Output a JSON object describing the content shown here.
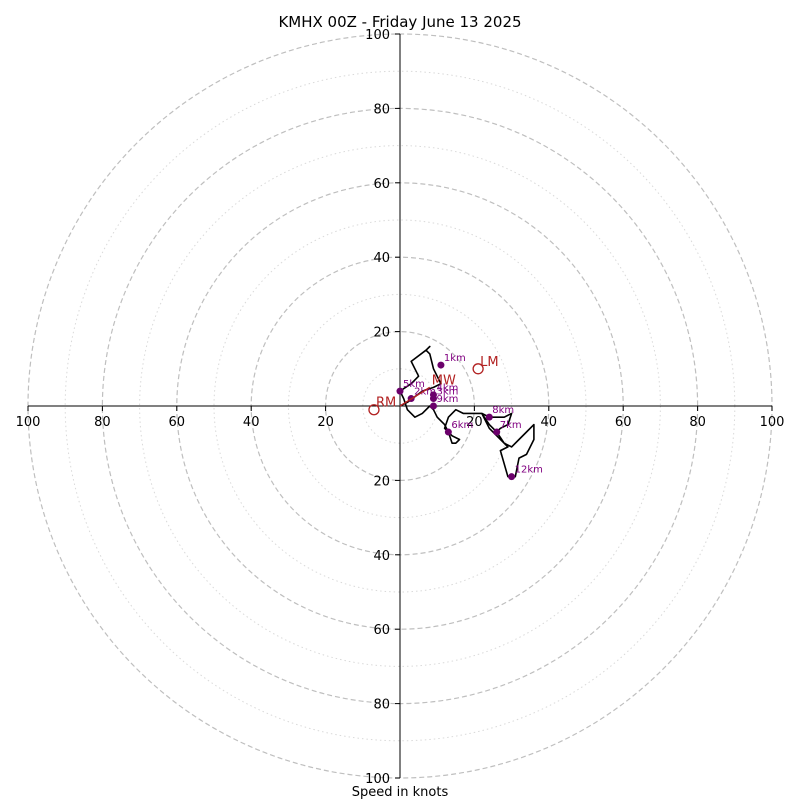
{
  "chart_data": {
    "type": "hodograph",
    "title": "KMHX 00Z - Friday June 13 2025",
    "xlabel": "Speed in knots",
    "range": [
      -100,
      100
    ],
    "ring_radii_dashed": [
      20,
      40,
      60,
      80,
      100
    ],
    "ring_radii_dotted": [
      10,
      30,
      50,
      70,
      90
    ],
    "ticks": {
      "right": [
        "20",
        "40",
        "60",
        "80",
        "100"
      ],
      "left": [
        "20",
        "40",
        "60",
        "80",
        "100"
      ],
      "top": [
        "20",
        "40",
        "60",
        "80",
        "100"
      ],
      "bottom": [
        "20",
        "40",
        "60",
        "80",
        "100"
      ]
    },
    "tick_values": [
      20,
      40,
      60,
      80,
      100
    ],
    "hodograph_trace": [
      [
        0,
        0
      ],
      [
        2,
        1
      ],
      [
        6,
        4
      ],
      [
        9,
        5
      ],
      [
        11,
        6
      ],
      [
        9,
        10
      ],
      [
        8,
        14
      ],
      [
        7,
        15
      ],
      [
        8,
        16
      ],
      [
        7,
        15
      ],
      [
        3,
        12
      ],
      [
        5,
        8
      ],
      [
        3,
        6
      ],
      [
        0,
        4
      ],
      [
        1,
        2
      ],
      [
        2,
        -1
      ],
      [
        4,
        -3
      ],
      [
        6,
        -2
      ],
      [
        8,
        0
      ],
      [
        9,
        -1
      ],
      [
        10,
        -3
      ],
      [
        12,
        -5
      ],
      [
        13,
        -7
      ],
      [
        14,
        -10
      ],
      [
        15,
        -10
      ],
      [
        16,
        -9
      ],
      [
        14,
        -8
      ],
      [
        12,
        -6
      ],
      [
        13,
        -3
      ],
      [
        15,
        -1
      ],
      [
        17,
        -2
      ],
      [
        19,
        -2
      ],
      [
        22,
        -2
      ],
      [
        24,
        -5
      ],
      [
        26,
        -7
      ],
      [
        28,
        -10
      ],
      [
        30,
        -11
      ],
      [
        32,
        -9
      ],
      [
        34,
        -7
      ],
      [
        36,
        -5
      ],
      [
        36,
        -9
      ],
      [
        34,
        -13
      ],
      [
        32,
        -14
      ],
      [
        31,
        -19
      ],
      [
        29,
        -19
      ],
      [
        27,
        -12
      ],
      [
        29,
        -11
      ],
      [
        24,
        -6
      ],
      [
        22,
        -2
      ],
      [
        24,
        -3
      ],
      [
        28,
        -3
      ],
      [
        30,
        -2
      ],
      [
        29,
        -5
      ],
      [
        27,
        -6
      ],
      [
        26,
        -7
      ],
      [
        24,
        -5
      ]
    ],
    "height_markers": [
      {
        "label": "1km",
        "u": 11,
        "v": 11
      },
      {
        "label": "2km",
        "u": 3,
        "v": 2
      },
      {
        "label": "3km",
        "u": 9,
        "v": 2
      },
      {
        "label": "4km",
        "u": 9,
        "v": 3
      },
      {
        "label": "5km",
        "u": 0,
        "v": 4
      },
      {
        "label": "6km",
        "u": 13,
        "v": -7
      },
      {
        "label": "7km",
        "u": 26,
        "v": -7
      },
      {
        "label": "8km",
        "u": 24,
        "v": -3
      },
      {
        "label": "9km",
        "u": 9,
        "v": 0
      },
      {
        "label": "12km",
        "u": 30,
        "v": -19
      }
    ],
    "motion_points": [
      {
        "label": "RM",
        "u": -7,
        "v": -1
      },
      {
        "label": "LM",
        "u": 21,
        "v": 10
      },
      {
        "label": "MW",
        "u": 8,
        "v": 5
      }
    ],
    "colors": {
      "trace": "#000000",
      "markers": "#6b006b",
      "marker_labels": "#800080",
      "motion": "#b22222",
      "rings": "#bfbfbf",
      "axes": "#000000"
    }
  }
}
